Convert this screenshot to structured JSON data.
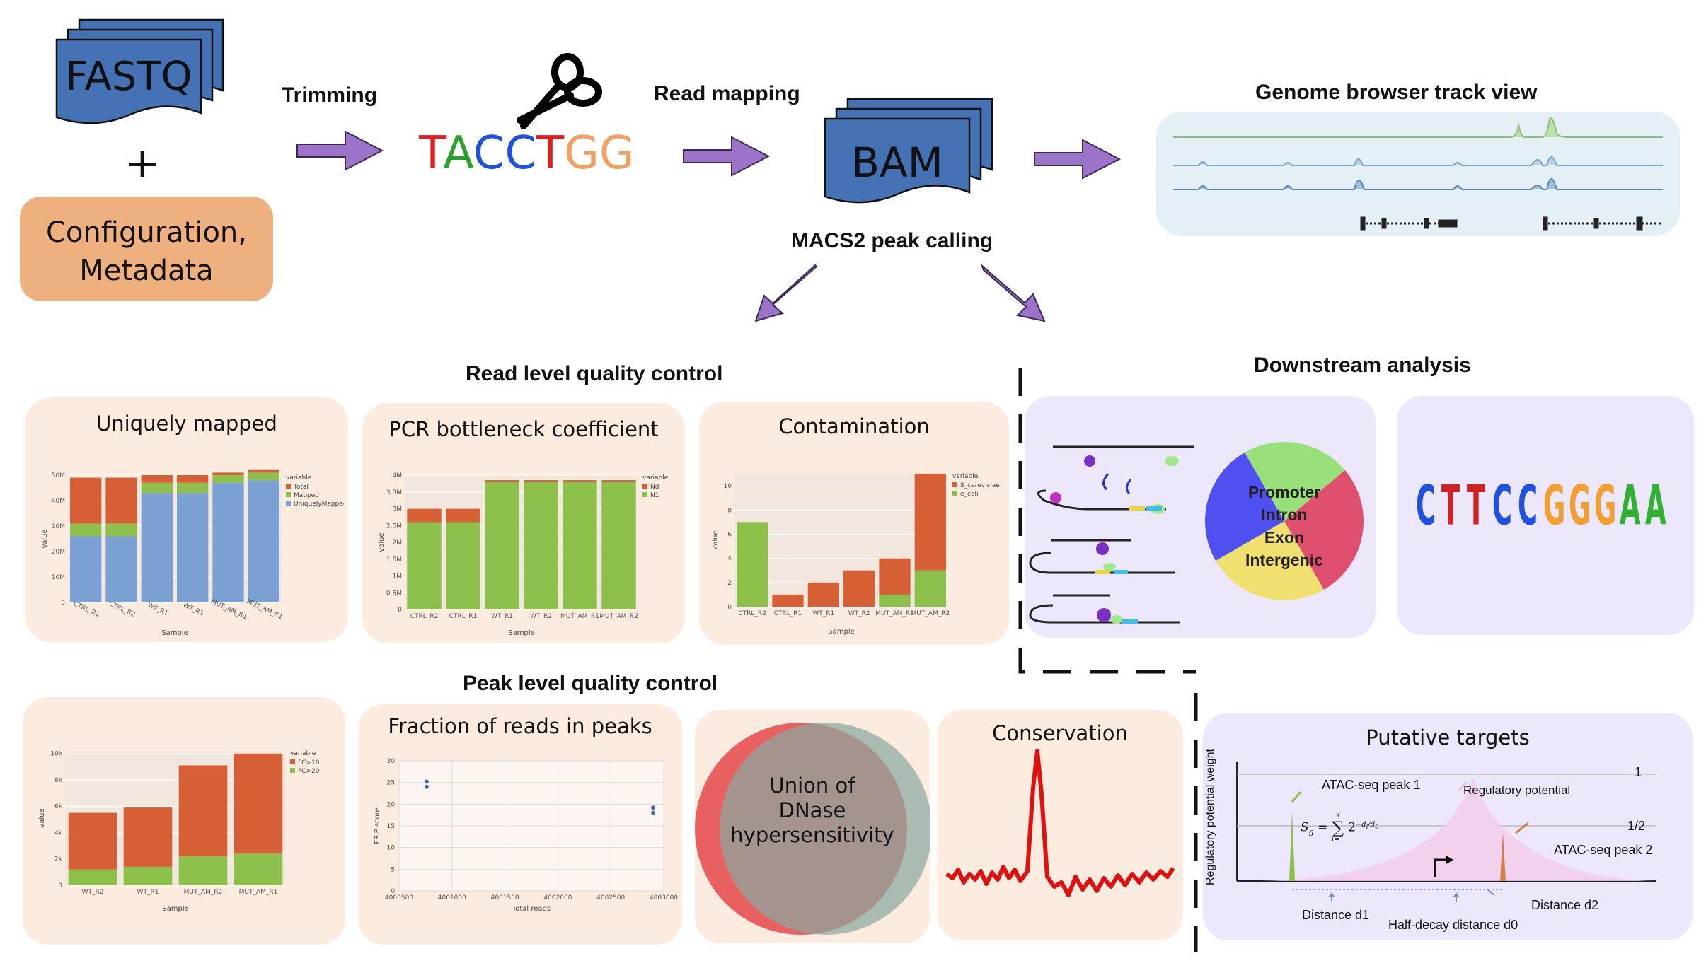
{
  "inputs": {
    "fastq_label": "FASTQ",
    "plus": "+",
    "config_line1": "Configuration,",
    "config_line2": "Metadata"
  },
  "steps": {
    "trimming": "Trimming",
    "read_mapping": "Read mapping",
    "bam_label": "BAM",
    "macs2": "MACS2 peak calling",
    "genome_browser": "Genome browser track view"
  },
  "sequence": {
    "letters": [
      {
        "char": "T",
        "color": "#e02020"
      },
      {
        "char": "A",
        "color": "#2ca02c"
      },
      {
        "char": "C",
        "color": "#2050e0"
      },
      {
        "char": "C",
        "color": "#2050e0"
      },
      {
        "char": "T",
        "color": "#e02020"
      },
      {
        "char": "G",
        "color": "#f0a060"
      },
      {
        "char": "G",
        "color": "#f0a060"
      }
    ]
  },
  "sections": {
    "read_qc": "Read level quality control",
    "peak_qc": "Peak level quality control",
    "downstream": "Downstream analysis"
  },
  "panels": {
    "uniquely_mapped": "Uniquely mapped",
    "pcr_bottleneck": "PCR bottleneck coefficient",
    "contamination": "Contamination",
    "frip": "Fraction of reads in peaks",
    "conservation": "Conservation",
    "putative_targets": "Putative targets"
  },
  "pie": {
    "labels": [
      "Promoter",
      "Intron",
      "Exon",
      "Intergenic"
    ],
    "colors": [
      "#99e07a",
      "#e0506e",
      "#f0e070",
      "#5050f0"
    ]
  },
  "venn": {
    "line1": "Union of",
    "line2": "DNase",
    "line3": "hypersensitivity",
    "left_color": "#e86060",
    "right_color": "#8aa8a0"
  },
  "motif": {
    "top": [
      {
        "char": "C",
        "color": "#2050e0"
      },
      {
        "char": "T",
        "color": "#d02020"
      },
      {
        "char": "T",
        "color": "#d02020"
      },
      {
        "char": "C",
        "color": "#2050e0"
      },
      {
        "char": "C",
        "color": "#2050e0"
      },
      {
        "char": "G",
        "color": "#f0a030"
      },
      {
        "char": "G",
        "color": "#f0a030"
      },
      {
        "char": "G",
        "color": "#f0a030"
      },
      {
        "char": "A",
        "color": "#30b030"
      },
      {
        "char": "A",
        "color": "#30b030"
      }
    ]
  },
  "targets": {
    "ylabel": "Regulatory potential weight",
    "peak1": "ATAC-seq peak 1",
    "peak2": "ATAC-seq peak 2",
    "reg_potential": "Regulatory potential",
    "one": "1",
    "half": "1/2",
    "d1": "Distance d1",
    "d2": "Distance d2",
    "d0": "Half-decay distance d0",
    "formula_lhs": "S",
    "formula_sub": "g",
    "formula_eq": "= ",
    "formula_sum_top": "k",
    "formula_sum_bot": "i=1",
    "formula_base": "2",
    "formula_exp": "−d",
    "formula_exp_sub": "i",
    "formula_exp_den": "d",
    "formula_exp_den_sub": "0"
  },
  "chart_data": [
    {
      "type": "bar",
      "id": "uniquely_mapped",
      "title": "Uniquely mapped",
      "xlabel": "Sample",
      "ylabel": "value",
      "categories": [
        "CTRL_R1",
        "CTRL_R2",
        "WT_R1",
        "WT_R1",
        "MUT_AM_R1",
        "MUT_AM_R1"
      ],
      "legend_title": "variable",
      "series": [
        {
          "name": "UniquelyMapped",
          "color": "#7aa0d4",
          "values": [
            26,
            26,
            43,
            43,
            47,
            48
          ]
        },
        {
          "name": "Mapped",
          "color": "#8cc04a",
          "values": [
            5,
            5,
            4,
            4,
            3,
            3
          ]
        },
        {
          "name": "Total",
          "color": "#d65f35",
          "values": [
            18,
            18,
            3,
            3,
            1,
            1
          ]
        }
      ],
      "yticks": [
        "0",
        "10M",
        "20M",
        "30M",
        "40M",
        "50M"
      ],
      "ylim": [
        0,
        50
      ],
      "legend_order": [
        "Total",
        "Mapped",
        "UniquelyMapped"
      ]
    },
    {
      "type": "bar",
      "id": "pcr_bottleneck",
      "title": "PCR bottleneck coefficient",
      "xlabel": "Sample",
      "ylabel": "value",
      "categories": [
        "CTRL_R2",
        "CTRL_R1",
        "WT_R1",
        "WT_R2",
        "MUT_AM_R1",
        "MUT_AM_R2"
      ],
      "legend_title": "variable",
      "series": [
        {
          "name": "N1",
          "color": "#8cc04a",
          "values": [
            2.6,
            2.6,
            3.8,
            3.8,
            3.8,
            3.8
          ]
        },
        {
          "name": "Nd",
          "color": "#d65f35",
          "values": [
            0.4,
            0.4,
            0.05,
            0.05,
            0.05,
            0.05
          ]
        }
      ],
      "yticks": [
        "0",
        "0.5M",
        "1M",
        "1.5M",
        "2M",
        "2.5M",
        "3M",
        "3.5M",
        "4M"
      ],
      "ylim": [
        0,
        4
      ],
      "legend_order": [
        "Nd",
        "N1"
      ]
    },
    {
      "type": "bar",
      "id": "contamination",
      "title": "Contamination",
      "xlabel": "Sample",
      "ylabel": "value",
      "categories": [
        "CTRL_R2",
        "CTRL_R1",
        "WT_R1",
        "WT_R2",
        "MUT_AM_R1",
        "MUT_AM_R2"
      ],
      "legend_title": "variable",
      "series": [
        {
          "name": "e_coli",
          "color": "#8cc04a",
          "values": [
            7,
            0,
            0,
            0,
            1,
            3
          ]
        },
        {
          "name": "S_cerevisiae",
          "color": "#d65f35",
          "values": [
            0,
            1,
            2,
            3,
            3,
            8
          ]
        }
      ],
      "yticks": [
        "0",
        "2",
        "4",
        "6",
        "8",
        "10"
      ],
      "ylim": [
        0,
        11
      ],
      "legend_order": [
        "S_cerevisiae",
        "e_coli"
      ]
    },
    {
      "type": "bar",
      "id": "peaks",
      "xlabel": "Sample",
      "ylabel": "value",
      "categories": [
        "WT_R2",
        "WT_R1",
        "MUT_AM_R2",
        "MUT_AM_R1"
      ],
      "legend_title": "variable",
      "series": [
        {
          "name": "FC>20",
          "color": "#8cc04a",
          "values": [
            1200,
            1400,
            2200,
            2400
          ]
        },
        {
          "name": "FC>10",
          "color": "#d65f35",
          "values": [
            4300,
            4500,
            6900,
            7600
          ]
        }
      ],
      "yticks": [
        "0",
        "2k",
        "4k",
        "6k",
        "8k",
        "10k"
      ],
      "ylim": [
        0,
        10200
      ],
      "legend_order": [
        "FC>10",
        "FC>20"
      ]
    },
    {
      "type": "scatter",
      "id": "frip",
      "title": "Fraction of reads in peaks",
      "xlabel": "Total reads",
      "ylabel": "FRiP score",
      "points": [
        {
          "x": 4000760,
          "y": 25.2
        },
        {
          "x": 4000760,
          "y": 24.0
        },
        {
          "x": 4002900,
          "y": 19.2
        },
        {
          "x": 4002900,
          "y": 18.0
        }
      ],
      "xticks": [
        "4000500",
        "4001000",
        "4001500",
        "4002000",
        "4002500",
        "4003000"
      ],
      "yticks": [
        "0",
        "5",
        "10",
        "15",
        "20",
        "25",
        "30"
      ],
      "xlim": [
        4000500,
        4003000
      ],
      "ylim": [
        0,
        30
      ]
    }
  ]
}
